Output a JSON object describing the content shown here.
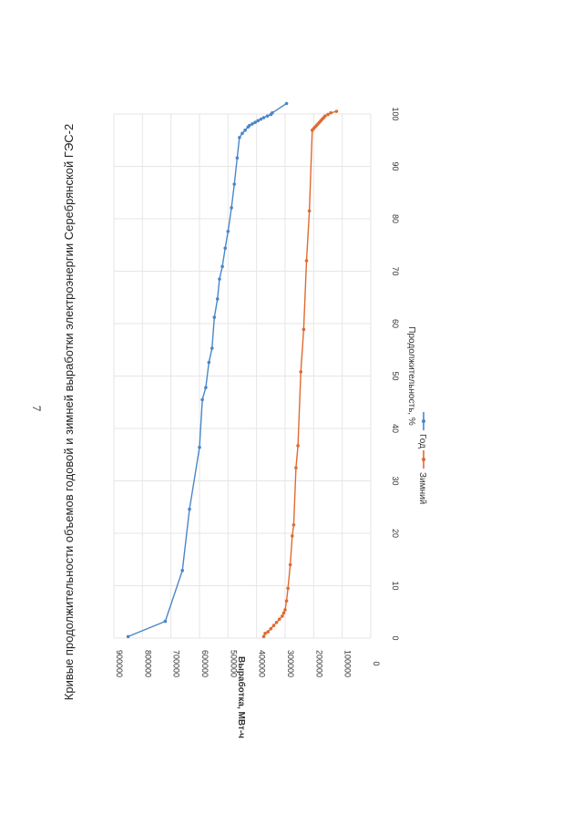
{
  "page_number": "7",
  "chart_data": {
    "type": "line",
    "title": "Кривые продолжительности объемов годовой и зимней выработки электроэнергии Серебрянской ГЭС-2",
    "xlabel": "Продолжительность, %",
    "ylabel": "Выработка, МВт-ч",
    "xlim": [
      0,
      100
    ],
    "ylim": [
      0,
      900000
    ],
    "xticks": [
      0,
      10,
      20,
      30,
      40,
      50,
      60,
      70,
      80,
      90,
      100
    ],
    "yticks": [
      0,
      100000,
      200000,
      300000,
      400000,
      500000,
      600000,
      700000,
      800000,
      900000
    ],
    "xtick_labels": [
      "0",
      "10",
      "20",
      "30",
      "40",
      "50",
      "60",
      "70",
      "80",
      "90",
      "100"
    ],
    "ytick_labels": [
      "0",
      "100000",
      "200000",
      "300000",
      "400000",
      "500000",
      "600000",
      "700000",
      "800000",
      "900000"
    ],
    "grid": true,
    "legend_position": "bottom",
    "series": [
      {
        "name": "Год",
        "color": "#4a86c8",
        "x": [
          0.3,
          3.2,
          12.9,
          24.6,
          36.4,
          45.5,
          47.8,
          52.6,
          55.3,
          61.2,
          64.7,
          68.5,
          70.9,
          74.4,
          77.6,
          82.1,
          86.6,
          91.6,
          95.5,
          96.3,
          96.9,
          97.5,
          97.8,
          98.1,
          98.4,
          98.7,
          99.0,
          99.3,
          99.6,
          99.9,
          100.2,
          102.0
        ],
        "y": [
          850000,
          720000,
          660000,
          635000,
          600000,
          590000,
          578000,
          567000,
          556000,
          548000,
          537000,
          530000,
          520000,
          510000,
          500000,
          488000,
          478000,
          468000,
          460000,
          450000,
          440000,
          430000,
          425000,
          415000,
          405000,
          395000,
          385000,
          375000,
          362000,
          350000,
          345000,
          295000
        ]
      },
      {
        "name": "Зимний",
        "color": "#e06a30",
        "x": [
          0.3,
          0.9,
          1.2,
          1.8,
          2.4,
          3.0,
          3.6,
          4.2,
          4.8,
          5.4,
          7.1,
          9.5,
          14.0,
          19.5,
          21.6,
          32.5,
          36.7,
          50.8,
          58.9,
          72.0,
          81.5,
          96.9,
          97.2,
          97.5,
          97.8,
          98.1,
          98.4,
          98.7,
          99.0,
          99.3,
          99.6,
          99.9,
          100.2,
          100.5
        ],
        "y": [
          375000,
          370000,
          360000,
          350000,
          340000,
          330000,
          320000,
          310000,
          305000,
          300000,
          295000,
          290000,
          282000,
          275000,
          270000,
          262000,
          255000,
          245000,
          235000,
          225000,
          215000,
          205000,
          200000,
          195000,
          190000,
          185000,
          180000,
          175000,
          170000,
          165000,
          160000,
          150000,
          140000,
          120000
        ]
      }
    ]
  }
}
